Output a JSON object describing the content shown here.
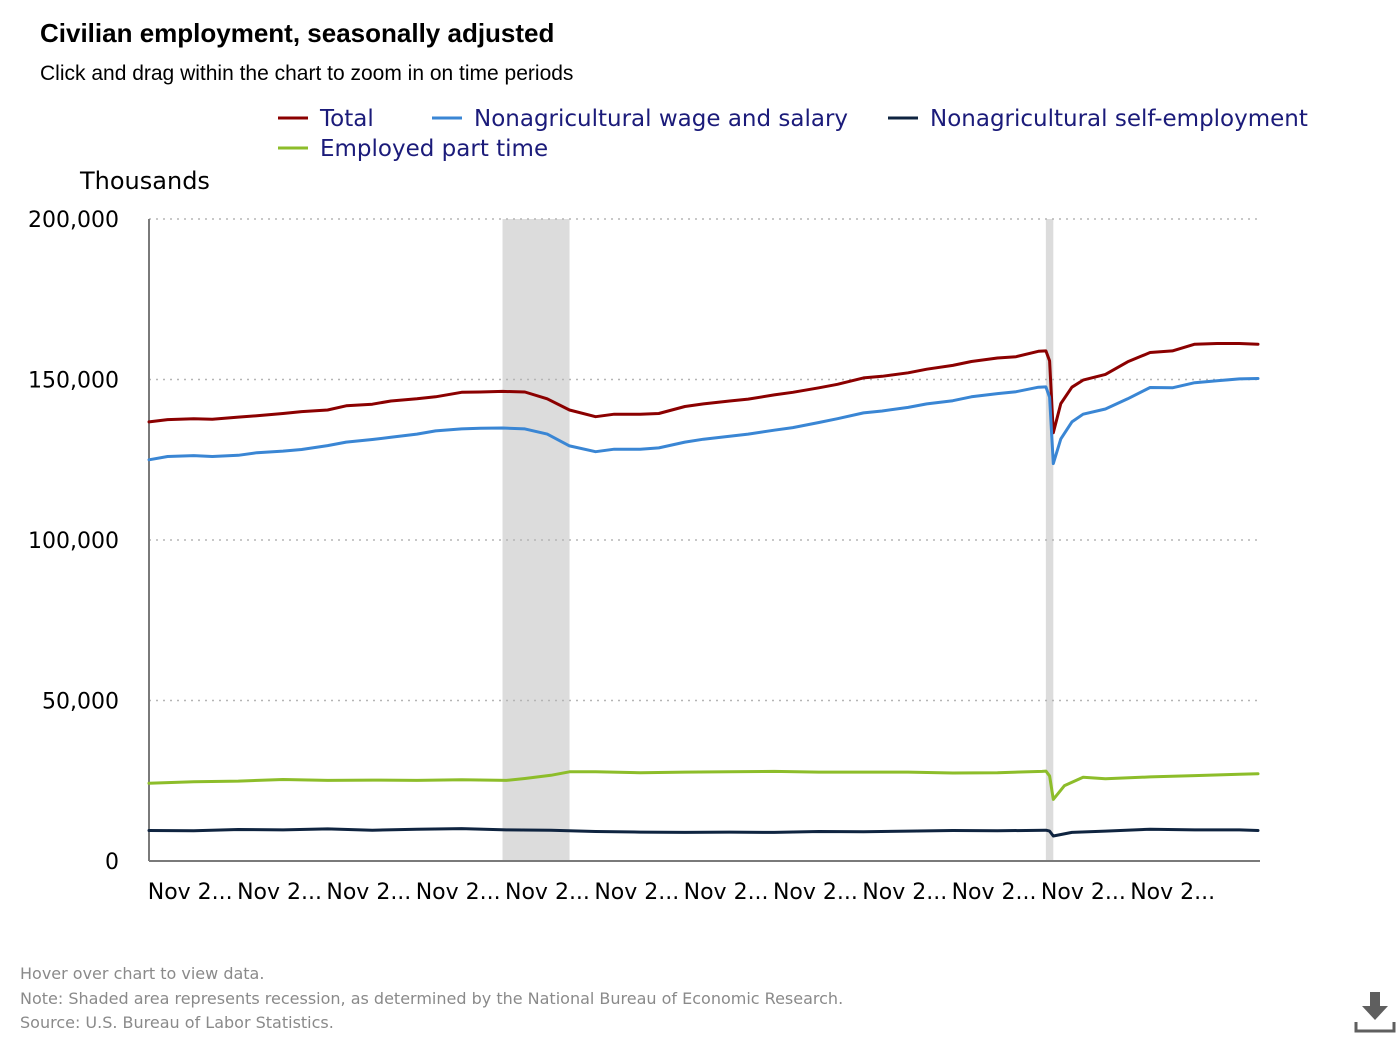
{
  "header": {
    "title": "Civilian employment, seasonally adjusted",
    "subtitle": "Click and drag within the chart to zoom in on time periods"
  },
  "footer": {
    "hover_note": "Hover over chart to view data.",
    "recession_note": "Note: Shaded area represents recession, as determined by the National Bureau of Economic Research.",
    "source": "Source: U.S. Bureau of Labor Statistics."
  },
  "icons": {
    "download": "download-icon"
  },
  "colors": {
    "total": "#8b0000",
    "wage_salary": "#3a86d4",
    "self_employment": "#0f2440",
    "part_time": "#8dbd2a",
    "recession_shade": "#dcdcdc"
  },
  "chart_data": {
    "type": "line",
    "ylabel": "Thousands",
    "ylim": [
      0,
      200000
    ],
    "yticks": [
      0,
      50000,
      100000,
      150000,
      200000
    ],
    "ytick_labels": [
      "0",
      "50,000",
      "100,000",
      "150,000",
      "200,000"
    ],
    "xlim": [
      "2000-01",
      "2024-11"
    ],
    "xticks": [
      "2000-11",
      "2002-11",
      "2004-11",
      "2006-11",
      "2008-11",
      "2010-11",
      "2012-11",
      "2014-11",
      "2016-11",
      "2018-11",
      "2020-11",
      "2022-11"
    ],
    "xtick_labels": [
      "Nov 2...",
      "Nov 2...",
      "Nov 2...",
      "Nov 2...",
      "Nov 2...",
      "Nov 2...",
      "Nov 2...",
      "Nov 2...",
      "Nov 2...",
      "Nov 2...",
      "Nov 2...",
      "Nov 2..."
    ],
    "grid": true,
    "legend_position": "top",
    "recessions": [
      {
        "start": "2007-12",
        "end": "2009-06"
      },
      {
        "start": "2020-02",
        "end": "2020-04"
      }
    ],
    "series": [
      {
        "name": "Total",
        "color": "#8b0000",
        "points": [
          [
            "2000-01",
            136800
          ],
          [
            "2000-06",
            137500
          ],
          [
            "2001-01",
            137800
          ],
          [
            "2001-06",
            137600
          ],
          [
            "2002-01",
            138300
          ],
          [
            "2002-06",
            138700
          ],
          [
            "2003-01",
            139400
          ],
          [
            "2003-06",
            140000
          ],
          [
            "2004-01",
            140500
          ],
          [
            "2004-06",
            141800
          ],
          [
            "2005-01",
            142300
          ],
          [
            "2005-06",
            143300
          ],
          [
            "2006-01",
            144000
          ],
          [
            "2006-06",
            144600
          ],
          [
            "2007-01",
            146000
          ],
          [
            "2007-06",
            146100
          ],
          [
            "2007-12",
            146300
          ],
          [
            "2008-06",
            146100
          ],
          [
            "2008-12",
            144000
          ],
          [
            "2009-06",
            140500
          ],
          [
            "2010-01",
            138400
          ],
          [
            "2010-06",
            139200
          ],
          [
            "2011-01",
            139200
          ],
          [
            "2011-06",
            139400
          ],
          [
            "2012-01",
            141600
          ],
          [
            "2012-06",
            142400
          ],
          [
            "2013-01",
            143300
          ],
          [
            "2013-06",
            143900
          ],
          [
            "2014-01",
            145200
          ],
          [
            "2014-06",
            146000
          ],
          [
            "2015-01",
            147400
          ],
          [
            "2015-06",
            148500
          ],
          [
            "2016-01",
            150500
          ],
          [
            "2016-06",
            151000
          ],
          [
            "2017-01",
            152100
          ],
          [
            "2017-06",
            153200
          ],
          [
            "2018-01",
            154400
          ],
          [
            "2018-06",
            155600
          ],
          [
            "2019-01",
            156700
          ],
          [
            "2019-06",
            157100
          ],
          [
            "2019-12",
            158800
          ],
          [
            "2020-02",
            158900
          ],
          [
            "2020-03",
            155800
          ],
          [
            "2020-04",
            133400
          ],
          [
            "2020-06",
            142500
          ],
          [
            "2020-09",
            147600
          ],
          [
            "2020-12",
            149800
          ],
          [
            "2021-06",
            151600
          ],
          [
            "2021-12",
            155500
          ],
          [
            "2022-06",
            158400
          ],
          [
            "2022-12",
            158900
          ],
          [
            "2023-06",
            161000
          ],
          [
            "2023-12",
            161200
          ],
          [
            "2024-06",
            161200
          ],
          [
            "2024-11",
            161000
          ]
        ]
      },
      {
        "name": "Nonagricultural wage and salary",
        "color": "#3a86d4",
        "points": [
          [
            "2000-01",
            125000
          ],
          [
            "2000-06",
            126000
          ],
          [
            "2001-01",
            126300
          ],
          [
            "2001-06",
            126000
          ],
          [
            "2002-01",
            126400
          ],
          [
            "2002-06",
            127200
          ],
          [
            "2003-01",
            127700
          ],
          [
            "2003-06",
            128200
          ],
          [
            "2004-01",
            129400
          ],
          [
            "2004-06",
            130500
          ],
          [
            "2005-01",
            131300
          ],
          [
            "2005-06",
            132000
          ],
          [
            "2006-01",
            133000
          ],
          [
            "2006-06",
            134000
          ],
          [
            "2007-01",
            134600
          ],
          [
            "2007-06",
            134800
          ],
          [
            "2007-12",
            134900
          ],
          [
            "2008-06",
            134600
          ],
          [
            "2008-12",
            133000
          ],
          [
            "2009-06",
            129300
          ],
          [
            "2010-01",
            127500
          ],
          [
            "2010-06",
            128300
          ],
          [
            "2011-01",
            128300
          ],
          [
            "2011-06",
            128700
          ],
          [
            "2012-01",
            130500
          ],
          [
            "2012-06",
            131400
          ],
          [
            "2013-01",
            132300
          ],
          [
            "2013-06",
            133000
          ],
          [
            "2014-01",
            134200
          ],
          [
            "2014-06",
            135000
          ],
          [
            "2015-01",
            136600
          ],
          [
            "2015-06",
            137800
          ],
          [
            "2016-01",
            139600
          ],
          [
            "2016-06",
            140200
          ],
          [
            "2017-01",
            141300
          ],
          [
            "2017-06",
            142400
          ],
          [
            "2018-01",
            143400
          ],
          [
            "2018-06",
            144600
          ],
          [
            "2019-01",
            145600
          ],
          [
            "2019-06",
            146200
          ],
          [
            "2019-12",
            147600
          ],
          [
            "2020-02",
            147700
          ],
          [
            "2020-03",
            144500
          ],
          [
            "2020-04",
            123800
          ],
          [
            "2020-06",
            131500
          ],
          [
            "2020-09",
            136800
          ],
          [
            "2020-12",
            139200
          ],
          [
            "2021-06",
            140800
          ],
          [
            "2021-12",
            144000
          ],
          [
            "2022-06",
            147500
          ],
          [
            "2022-12",
            147400
          ],
          [
            "2023-06",
            149000
          ],
          [
            "2023-12",
            149600
          ],
          [
            "2024-06",
            150200
          ],
          [
            "2024-11",
            150300
          ]
        ]
      },
      {
        "name": "Nonagricultural self-employment",
        "color": "#0f2440",
        "points": [
          [
            "2000-01",
            9500
          ],
          [
            "2001-01",
            9400
          ],
          [
            "2002-01",
            9800
          ],
          [
            "2003-01",
            9700
          ],
          [
            "2004-01",
            10000
          ],
          [
            "2005-01",
            9600
          ],
          [
            "2006-01",
            9900
          ],
          [
            "2007-01",
            10100
          ],
          [
            "2008-01",
            9700
          ],
          [
            "2009-01",
            9600
          ],
          [
            "2010-01",
            9200
          ],
          [
            "2011-01",
            9000
          ],
          [
            "2012-01",
            8900
          ],
          [
            "2013-01",
            9000
          ],
          [
            "2014-01",
            8900
          ],
          [
            "2015-01",
            9200
          ],
          [
            "2016-01",
            9100
          ],
          [
            "2017-01",
            9300
          ],
          [
            "2018-01",
            9500
          ],
          [
            "2019-01",
            9400
          ],
          [
            "2020-02",
            9600
          ],
          [
            "2020-03",
            9300
          ],
          [
            "2020-04",
            7800
          ],
          [
            "2020-09",
            8900
          ],
          [
            "2021-06",
            9300
          ],
          [
            "2022-06",
            9900
          ],
          [
            "2023-06",
            9700
          ],
          [
            "2024-06",
            9700
          ],
          [
            "2024-11",
            9500
          ]
        ]
      },
      {
        "name": "Employed part time",
        "color": "#8dbd2a",
        "points": [
          [
            "2000-01",
            24200
          ],
          [
            "2001-01",
            24700
          ],
          [
            "2002-01",
            24900
          ],
          [
            "2003-01",
            25400
          ],
          [
            "2004-01",
            25100
          ],
          [
            "2005-01",
            25200
          ],
          [
            "2006-01",
            25100
          ],
          [
            "2007-01",
            25300
          ],
          [
            "2008-01",
            25100
          ],
          [
            "2008-06",
            25700
          ],
          [
            "2009-01",
            26700
          ],
          [
            "2009-06",
            27800
          ],
          [
            "2010-01",
            27800
          ],
          [
            "2011-01",
            27500
          ],
          [
            "2012-01",
            27700
          ],
          [
            "2013-01",
            27800
          ],
          [
            "2014-01",
            27900
          ],
          [
            "2015-01",
            27700
          ],
          [
            "2016-01",
            27700
          ],
          [
            "2017-01",
            27700
          ],
          [
            "2018-01",
            27400
          ],
          [
            "2019-01",
            27500
          ],
          [
            "2020-01",
            27900
          ],
          [
            "2020-02",
            28000
          ],
          [
            "2020-03",
            26500
          ],
          [
            "2020-04",
            19200
          ],
          [
            "2020-07",
            23500
          ],
          [
            "2020-12",
            26100
          ],
          [
            "2021-06",
            25600
          ],
          [
            "2022-06",
            26200
          ],
          [
            "2023-06",
            26600
          ],
          [
            "2024-06",
            27000
          ],
          [
            "2024-11",
            27200
          ]
        ]
      }
    ]
  }
}
